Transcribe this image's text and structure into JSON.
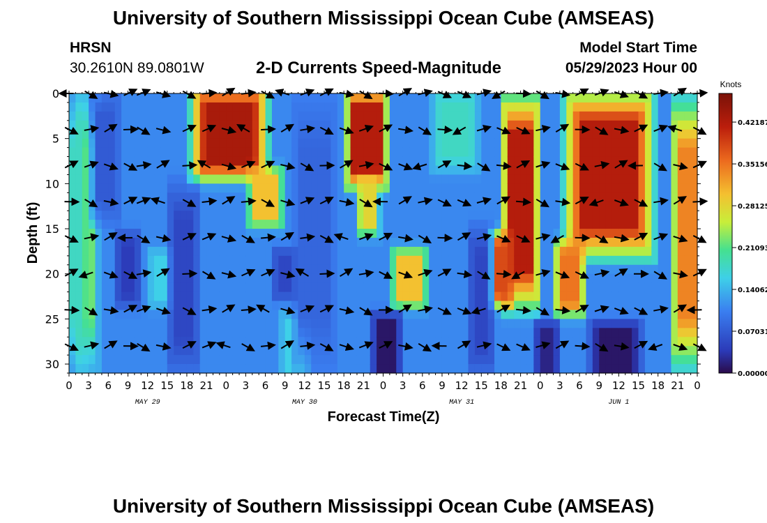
{
  "page": {
    "title": "University of Southern Mississippi Ocean Cube (AMSEAS)",
    "station": "HRSN",
    "coords": "30.2610N  89.0801W",
    "plot_title": "2-D Currents Speed-Magnitude",
    "start_label": "Model Start Time",
    "start_value": "05/29/2023 Hour 00",
    "footer_title": "University of Southern Mississippi Ocean Cube (AMSEAS)"
  },
  "chart_data": {
    "type": "heatmap",
    "xlabel": "Forecast Time(Z)",
    "ylabel": "Depth (ft)",
    "xlim": [
      0,
      96
    ],
    "ylim": [
      0,
      31
    ],
    "x_ticks": [
      "0",
      "3",
      "6",
      "9",
      "12",
      "15",
      "18",
      "21",
      "0",
      "3",
      "6",
      "9",
      "12",
      "15",
      "18",
      "21",
      "0",
      "3",
      "6",
      "9",
      "12",
      "15",
      "18",
      "21",
      "0",
      "3",
      "6",
      "9",
      "12",
      "15",
      "18",
      "21",
      "0"
    ],
    "x_tick_hours": [
      0,
      3,
      6,
      9,
      12,
      15,
      18,
      21,
      24,
      27,
      30,
      33,
      36,
      39,
      42,
      45,
      48,
      51,
      54,
      57,
      60,
      63,
      66,
      69,
      72,
      75,
      78,
      81,
      84,
      87,
      90,
      93,
      96
    ],
    "date_labels": [
      {
        "text": "MAY 29",
        "hour": 12
      },
      {
        "text": "MAY 30",
        "hour": 36
      },
      {
        "text": "MAY 31",
        "hour": 60
      },
      {
        "text": "JUN 1",
        "hour": 84
      }
    ],
    "y_ticks": [
      0,
      5,
      10,
      15,
      20,
      25,
      30
    ],
    "colorbar": {
      "title": "Knots",
      "ticks": [
        "0.42187",
        "0.35156",
        "0.28125",
        "0.21093",
        "0.14062",
        "0.07031",
        "0.00000"
      ],
      "tick_values": [
        0.42187,
        0.35156,
        0.28125,
        0.21093,
        0.14062,
        0.07031,
        0.0
      ],
      "range": [
        0,
        0.47
      ]
    },
    "arrow_depths": [
      0,
      4,
      8,
      12,
      16,
      20,
      24,
      28
    ],
    "arrow_hours": [
      0,
      3,
      6,
      9,
      11,
      14,
      18,
      21,
      24,
      27,
      30,
      33,
      36,
      39,
      42,
      45,
      48,
      51,
      54,
      57,
      60,
      63,
      66,
      69,
      72,
      75,
      78,
      81,
      84,
      87,
      90,
      93,
      96
    ],
    "speed_regions": [
      {
        "h0": 19,
        "h1": 30,
        "d0": 0,
        "d1": 9,
        "v": 0.43
      },
      {
        "h0": 28,
        "h1": 32,
        "d0": 9,
        "d1": 14,
        "v": 0.3
      },
      {
        "h0": 43,
        "h1": 48,
        "d0": 0,
        "d1": 10,
        "v": 0.42
      },
      {
        "h0": 45,
        "h1": 46.5,
        "d0": 10,
        "d1": 15,
        "v": 0.28
      },
      {
        "h0": 67,
        "h1": 71,
        "d0": 0,
        "d1": 24,
        "v": 0.42
      },
      {
        "h0": 65,
        "h1": 67,
        "d0": 16,
        "d1": 23,
        "v": 0.38
      },
      {
        "h0": 76,
        "h1": 89,
        "d0": 0,
        "d1": 18,
        "v": 0.42
      },
      {
        "h0": 75,
        "h1": 78,
        "d0": 17,
        "d1": 24,
        "v": 0.35
      },
      {
        "h0": 93,
        "h1": 96,
        "d0": 0,
        "d1": 31,
        "v": 0.34
      },
      {
        "h0": 50,
        "h1": 54,
        "d0": 18,
        "d1": 23,
        "v": 0.3
      },
      {
        "h0": 2,
        "h1": 3.5,
        "d0": 0,
        "d1": 31,
        "v": 0.22
      },
      {
        "h0": 0,
        "h1": 1.5,
        "d0": 0,
        "d1": 31,
        "v": 0.18
      },
      {
        "h0": 56,
        "h1": 62,
        "d0": 0,
        "d1": 8,
        "v": 0.18
      },
      {
        "h0": 13,
        "h1": 15,
        "d0": 18,
        "d1": 23,
        "v": 0.16
      },
      {
        "h0": 33,
        "h1": 36,
        "d0": 25,
        "d1": 31,
        "v": 0.16
      },
      {
        "h0": 47,
        "h1": 50,
        "d0": 25,
        "d1": 31,
        "v": 0.01
      },
      {
        "h0": 80,
        "h1": 87,
        "d0": 26,
        "d1": 31,
        "v": 0.01
      },
      {
        "h0": 72,
        "h1": 74,
        "d0": 26,
        "d1": 31,
        "v": 0.02
      },
      {
        "h0": 8,
        "h1": 10,
        "d0": 16,
        "d1": 23,
        "v": 0.04
      },
      {
        "h0": 16,
        "h1": 19,
        "d0": 10,
        "d1": 31,
        "v": 0.05
      },
      {
        "h0": 32,
        "h1": 34,
        "d0": 18,
        "d1": 22,
        "v": 0.05
      },
      {
        "h0": 62,
        "h1": 64,
        "d0": 15,
        "d1": 31,
        "v": 0.05
      },
      {
        "h0": 4,
        "h1": 7,
        "d0": 0,
        "d1": 14,
        "v": 0.07
      },
      {
        "h0": 35,
        "h1": 40,
        "d0": 0,
        "d1": 31,
        "v": 0.08
      }
    ],
    "background_speed": 0.11
  }
}
